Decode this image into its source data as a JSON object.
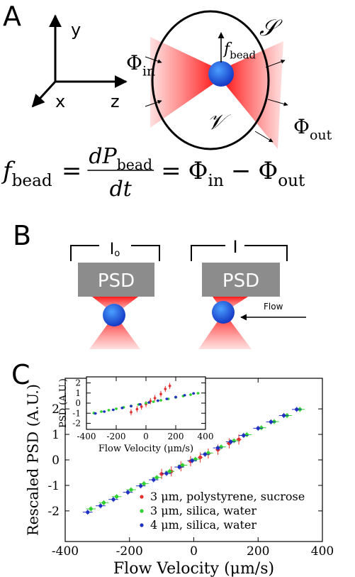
{
  "panel_a": {
    "label": "A",
    "axis_y": "y",
    "axis_x": "x",
    "axis_z": "z",
    "surface": "𝒮",
    "volume": "𝒱",
    "force": {
      "base": "f",
      "sub": "bead"
    },
    "flux_in": {
      "base": "Φ",
      "sub": "in"
    },
    "flux_out": {
      "base": "Φ",
      "sub": "out"
    },
    "equation": {
      "lhs": {
        "base": "f",
        "sub": "bead"
      },
      "eq1": "=",
      "num": {
        "base": "dP",
        "sub": "bead"
      },
      "den": "dt",
      "eq2": "=",
      "t1": {
        "base": "Φ",
        "sub": "in"
      },
      "minus": "−",
      "t2": {
        "base": "Φ",
        "sub": "out"
      }
    }
  },
  "panel_b": {
    "label": "B",
    "left": {
      "signal": {
        "base": "I",
        "sub": "o"
      },
      "detector": "PSD"
    },
    "right": {
      "signal": "I",
      "detector": "PSD",
      "flow": "Flow"
    }
  },
  "chart_data": [
    {
      "type": "scatter",
      "label": "C",
      "xlabel": "Flow Velocity (μm/s)",
      "ylabel": "Rescaled PSD (A.U.)",
      "xlim": [
        -400,
        400
      ],
      "xticks": [
        -400,
        -200,
        0,
        200,
        400
      ],
      "ylim": [
        -3.2,
        3.2
      ],
      "yticks": [
        -2,
        -1,
        0,
        1,
        2
      ],
      "legend": "lower right",
      "series": [
        {
          "name": "3 μm, polystyrene, sucrose",
          "color": "#e03030",
          "x": [
            -100,
            -70,
            -40,
            -10,
            20,
            45,
            75,
            110,
            140
          ],
          "values": [
            -0.55,
            -0.45,
            -0.25,
            -0.05,
            0.1,
            0.25,
            0.4,
            0.65,
            0.8
          ],
          "xerr": 8,
          "yerr": 0.2
        },
        {
          "name": "3 μm, silica, water",
          "color": "#30d030",
          "x": [
            -320,
            -280,
            -240,
            -195,
            -155,
            -115,
            -75,
            -35,
            5,
            45,
            85,
            125,
            165,
            210,
            250,
            290,
            330
          ],
          "values": [
            -1.92,
            -1.68,
            -1.44,
            -1.17,
            -0.93,
            -0.69,
            -0.45,
            -0.21,
            0.03,
            0.27,
            0.51,
            0.75,
            0.99,
            1.26,
            1.5,
            1.74,
            1.98
          ],
          "xerr": 15,
          "yerr": 0.1
        },
        {
          "name": "4 μm, silica, water",
          "color": "#2030c0",
          "x": [
            -330,
            -290,
            -250,
            -205,
            -165,
            -125,
            -85,
            -45,
            -5,
            35,
            75,
            115,
            155,
            200,
            240,
            280,
            320
          ],
          "values": [
            -2.05,
            -1.8,
            -1.55,
            -1.27,
            -1.02,
            -0.78,
            -0.53,
            -0.28,
            -0.03,
            0.22,
            0.47,
            0.71,
            0.96,
            1.24,
            1.49,
            1.74,
            1.98
          ],
          "xerr": 15,
          "yerr": 0.1
        }
      ]
    },
    {
      "type": "scatter",
      "xlabel": "Flow Velocity (μm/s)",
      "ylabel": "PSD (A.U.)",
      "xlim": [
        -400,
        400
      ],
      "xticks": [
        -400,
        -200,
        0,
        200,
        400
      ],
      "ylim": [
        -2.6,
        2.6
      ],
      "yticks": [
        -2,
        -1,
        0,
        1,
        2
      ],
      "series": [
        {
          "color": "#e03030",
          "x": [
            -100,
            -60,
            -30,
            0,
            30,
            60,
            100,
            130,
            160
          ],
          "values": [
            -0.9,
            -0.6,
            -0.35,
            -0.1,
            0.2,
            0.5,
            0.9,
            1.4,
            1.7
          ],
          "xerr": 8,
          "yerr": 0.3
        },
        {
          "color": "#30d030",
          "x": [
            -350,
            -300,
            -250,
            -200,
            -150,
            -100,
            -50,
            0,
            50,
            100,
            150,
            200,
            250,
            300,
            350
          ],
          "values": [
            -0.98,
            -0.84,
            -0.7,
            -0.56,
            -0.42,
            -0.28,
            -0.14,
            0,
            0.14,
            0.28,
            0.42,
            0.56,
            0.7,
            0.84,
            0.98
          ],
          "xerr": 10,
          "yerr": 0.1
        },
        {
          "color": "#2030c0",
          "x": [
            -340,
            -280,
            -220,
            -160,
            -100,
            -40,
            20,
            80,
            140,
            200,
            260,
            320
          ],
          "values": [
            -1.02,
            -0.84,
            -0.66,
            -0.48,
            -0.3,
            -0.12,
            0.06,
            0.24,
            0.42,
            0.6,
            0.78,
            0.96
          ],
          "xerr": 10,
          "yerr": 0.1
        }
      ]
    }
  ]
}
